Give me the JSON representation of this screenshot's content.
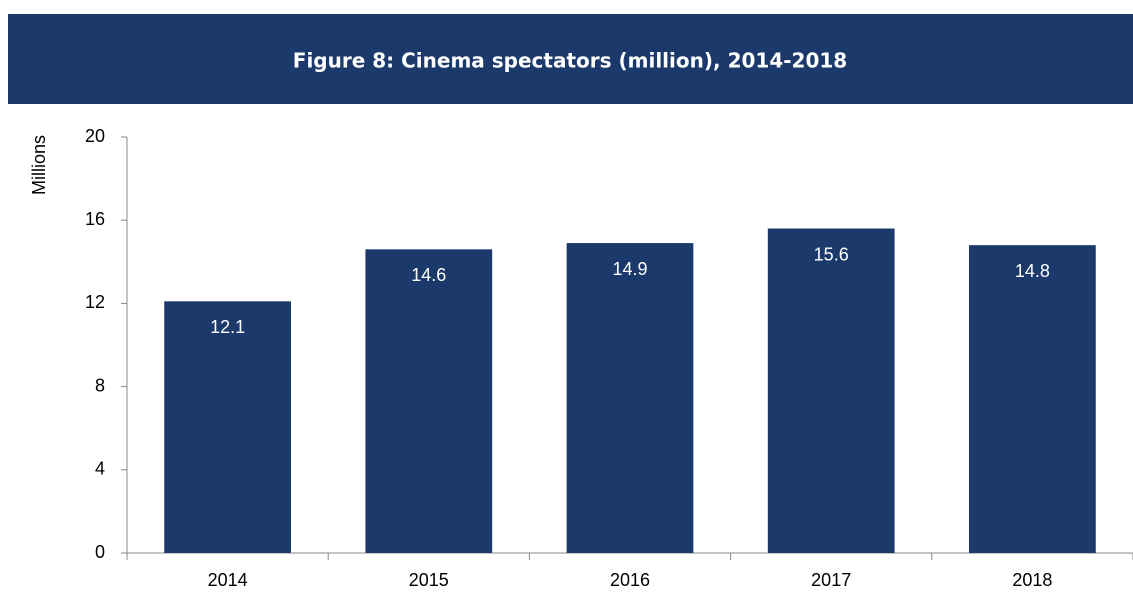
{
  "chart_data": {
    "type": "bar",
    "title": "Figure 8: Cinema spectators (million), 2014-2018",
    "y_label": "Millions",
    "categories": [
      "2014",
      "2015",
      "2016",
      "2017",
      "2018"
    ],
    "values": [
      12.1,
      14.6,
      14.9,
      15.6,
      14.8
    ],
    "color": "#1b3a6b",
    "ylim": [
      0,
      20
    ],
    "yticks": [
      0,
      4,
      8,
      12,
      16,
      20
    ],
    "grid": false,
    "data_labels": true
  }
}
